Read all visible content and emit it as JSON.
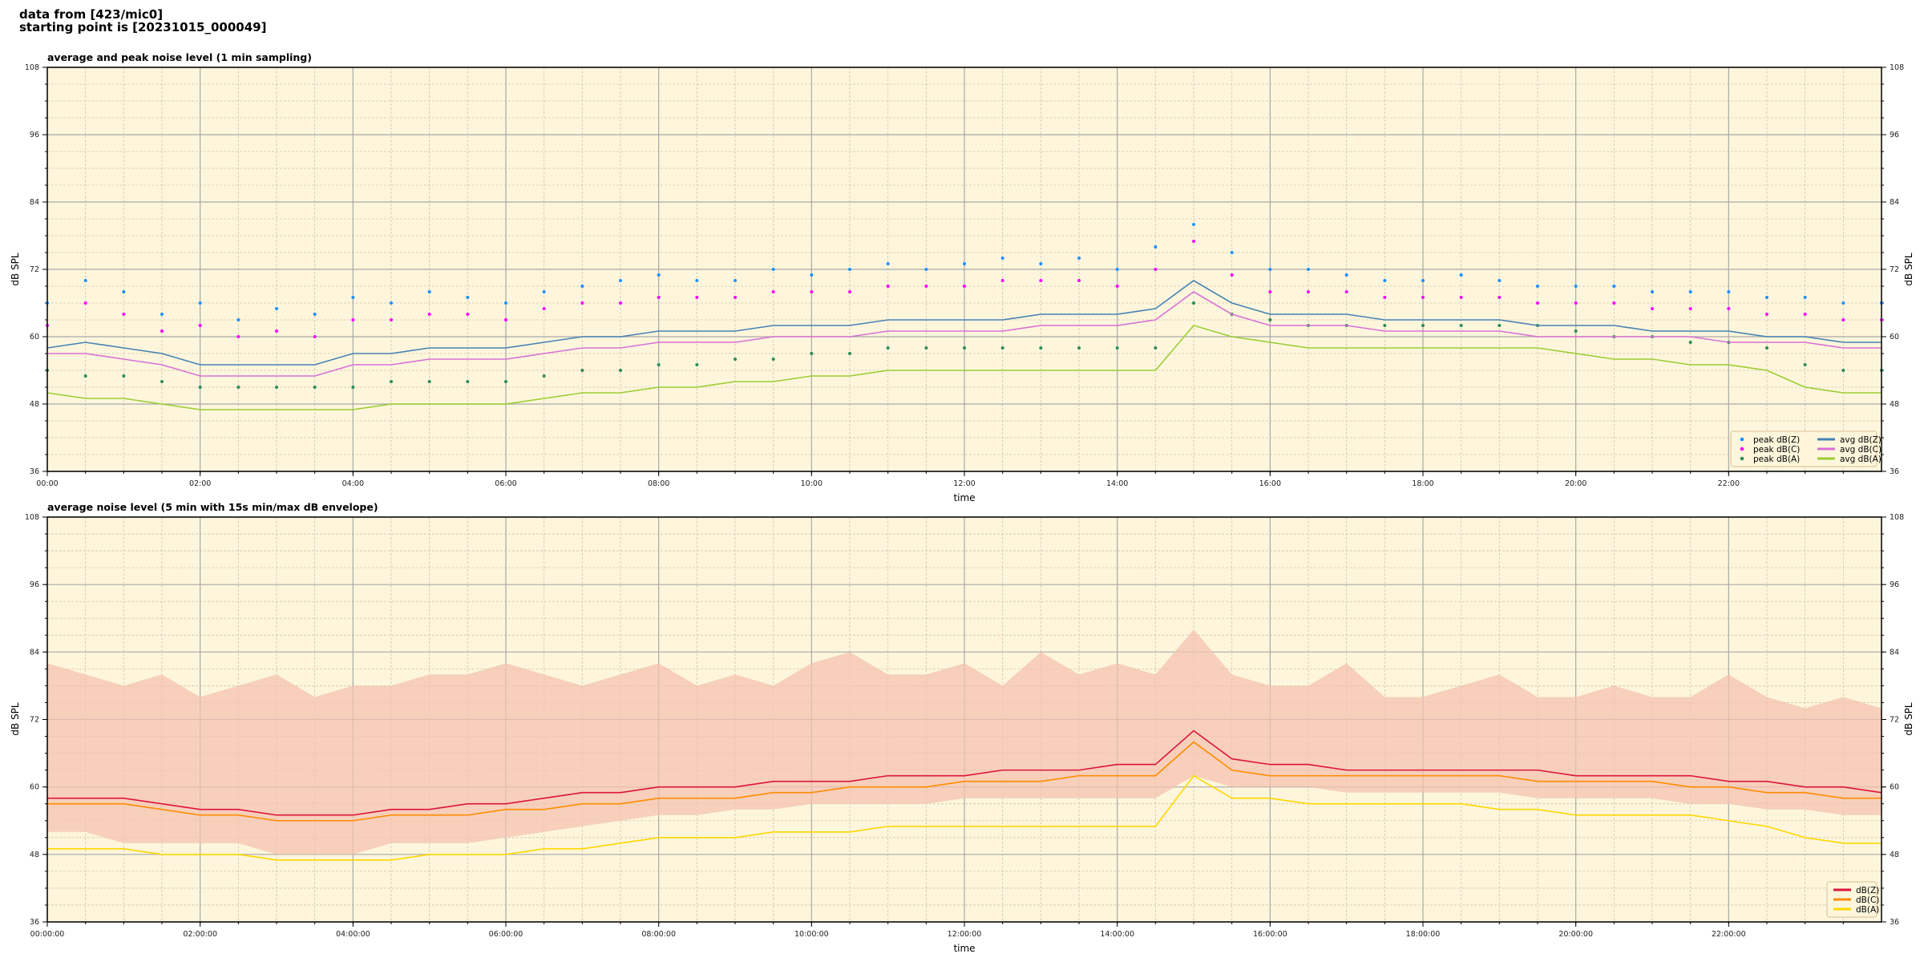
{
  "header": {
    "line1": "data from [423/mic0]",
    "line2": "starting point is [20231015_000049]"
  },
  "chart_data": [
    {
      "type": "line",
      "title": "average and peak noise level (1 min sampling)",
      "xlabel": "time",
      "ylabel": "dB SPL",
      "xlim_hours": [
        0,
        24
      ],
      "ylim": [
        36,
        108
      ],
      "yticks": [
        36,
        48,
        60,
        72,
        84,
        96,
        108
      ],
      "xtick_labels": [
        "00:00",
        "02:00",
        "04:00",
        "06:00",
        "08:00",
        "10:00",
        "12:00",
        "14:00",
        "16:00",
        "18:00",
        "20:00",
        "22:00"
      ],
      "grid": true,
      "background": "#fdf6dc",
      "legend_position": "lower-right",
      "x_hours_step": 0.5,
      "series": [
        {
          "name": "peak dB(Z)",
          "kind": "scatter",
          "color": "#1e90ff",
          "values": [
            66,
            70,
            68,
            64,
            66,
            63,
            65,
            64,
            67,
            66,
            68,
            67,
            66,
            68,
            69,
            70,
            71,
            70,
            70,
            72,
            71,
            72,
            73,
            72,
            73,
            74,
            73,
            74,
            72,
            76,
            80,
            75,
            72,
            72,
            71,
            70,
            70,
            71,
            70,
            69,
            69,
            69,
            68,
            68,
            68,
            67,
            67,
            66,
            66
          ]
        },
        {
          "name": "peak dB(C)",
          "kind": "scatter",
          "color": "#ff00ff",
          "values": [
            62,
            66,
            64,
            61,
            62,
            60,
            61,
            60,
            63,
            63,
            64,
            64,
            63,
            65,
            66,
            66,
            67,
            67,
            67,
            68,
            68,
            68,
            69,
            69,
            69,
            70,
            70,
            70,
            69,
            72,
            77,
            71,
            68,
            68,
            68,
            67,
            67,
            67,
            67,
            66,
            66,
            66,
            65,
            65,
            65,
            64,
            64,
            63,
            63
          ]
        },
        {
          "name": "peak dB(A)",
          "kind": "scatter",
          "color": "#2e8b57",
          "values": [
            54,
            53,
            53,
            52,
            51,
            51,
            51,
            51,
            51,
            52,
            52,
            52,
            52,
            53,
            54,
            54,
            55,
            55,
            56,
            56,
            57,
            57,
            58,
            58,
            58,
            58,
            58,
            58,
            58,
            58,
            66,
            64,
            63,
            62,
            62,
            62,
            62,
            62,
            62,
            62,
            61,
            60,
            60,
            59,
            59,
            58,
            55,
            54,
            54
          ]
        },
        {
          "name": "avg dB(Z)",
          "kind": "line",
          "color": "#4682b4",
          "values": [
            58,
            59,
            58,
            57,
            55,
            55,
            55,
            55,
            57,
            57,
            58,
            58,
            58,
            59,
            60,
            60,
            61,
            61,
            61,
            62,
            62,
            62,
            63,
            63,
            63,
            63,
            64,
            64,
            64,
            65,
            70,
            66,
            64,
            64,
            64,
            63,
            63,
            63,
            63,
            62,
            62,
            62,
            61,
            61,
            61,
            60,
            60,
            59,
            59
          ]
        },
        {
          "name": "avg dB(C)",
          "kind": "line",
          "color": "#da70d6",
          "values": [
            57,
            57,
            56,
            55,
            53,
            53,
            53,
            53,
            55,
            55,
            56,
            56,
            56,
            57,
            58,
            58,
            59,
            59,
            59,
            60,
            60,
            60,
            61,
            61,
            61,
            61,
            62,
            62,
            62,
            63,
            68,
            64,
            62,
            62,
            62,
            61,
            61,
            61,
            61,
            60,
            60,
            60,
            60,
            60,
            59,
            59,
            59,
            58,
            58
          ]
        },
        {
          "name": "avg dB(A)",
          "kind": "line",
          "color": "#9acd32",
          "values": [
            50,
            49,
            49,
            48,
            47,
            47,
            47,
            47,
            47,
            48,
            48,
            48,
            48,
            49,
            50,
            50,
            51,
            51,
            52,
            52,
            53,
            53,
            54,
            54,
            54,
            54,
            54,
            54,
            54,
            54,
            62,
            60,
            59,
            58,
            58,
            58,
            58,
            58,
            58,
            58,
            57,
            56,
            56,
            55,
            55,
            54,
            51,
            50,
            50
          ]
        }
      ]
    },
    {
      "type": "line",
      "title": "average noise level (5 min with 15s min/max dB envelope)",
      "xlabel": "time",
      "ylabel": "dB SPL",
      "xlim_hours": [
        0,
        24
      ],
      "ylim": [
        36,
        108
      ],
      "yticks": [
        36,
        48,
        60,
        72,
        84,
        96,
        108
      ],
      "xtick_labels": [
        "00:00:00",
        "02:00:00",
        "04:00:00",
        "06:00:00",
        "08:00:00",
        "10:00:00",
        "12:00:00",
        "14:00:00",
        "16:00:00",
        "18:00:00",
        "20:00:00",
        "22:00:00"
      ],
      "grid": true,
      "background": "#fdf6dc",
      "legend_position": "lower-right",
      "x_hours_step": 0.5,
      "envelope": {
        "color": "#f4c2b0",
        "max": [
          82,
          80,
          78,
          80,
          76,
          78,
          80,
          76,
          78,
          78,
          80,
          80,
          82,
          80,
          78,
          80,
          82,
          78,
          80,
          78,
          82,
          84,
          80,
          80,
          82,
          78,
          84,
          80,
          82,
          80,
          88,
          80,
          78,
          78,
          82,
          76,
          76,
          78,
          80,
          76,
          76,
          78,
          76,
          76,
          80,
          76,
          74,
          76,
          74
        ],
        "min": [
          52,
          52,
          50,
          50,
          50,
          50,
          48,
          48,
          48,
          50,
          50,
          50,
          51,
          52,
          53,
          54,
          55,
          55,
          56,
          56,
          57,
          57,
          57,
          57,
          58,
          58,
          58,
          58,
          58,
          58,
          62,
          60,
          60,
          60,
          59,
          59,
          59,
          59,
          59,
          58,
          58,
          58,
          58,
          57,
          57,
          56,
          56,
          55,
          55
        ]
      },
      "series": [
        {
          "name": "dB(Z)",
          "kind": "line",
          "color": "#dc143c",
          "values": [
            58,
            58,
            58,
            57,
            56,
            56,
            55,
            55,
            55,
            56,
            56,
            57,
            57,
            58,
            59,
            59,
            60,
            60,
            60,
            61,
            61,
            61,
            62,
            62,
            62,
            63,
            63,
            63,
            64,
            64,
            70,
            65,
            64,
            64,
            63,
            63,
            63,
            63,
            63,
            63,
            62,
            62,
            62,
            62,
            61,
            61,
            60,
            60,
            59
          ]
        },
        {
          "name": "dB(C)",
          "kind": "line",
          "color": "#ff8c00",
          "values": [
            57,
            57,
            57,
            56,
            55,
            55,
            54,
            54,
            54,
            55,
            55,
            55,
            56,
            56,
            57,
            57,
            58,
            58,
            58,
            59,
            59,
            60,
            60,
            60,
            61,
            61,
            61,
            62,
            62,
            62,
            68,
            63,
            62,
            62,
            62,
            62,
            62,
            62,
            62,
            61,
            61,
            61,
            61,
            60,
            60,
            59,
            59,
            58,
            58
          ]
        },
        {
          "name": "dB(A)",
          "kind": "line",
          "color": "#ffd700",
          "values": [
            49,
            49,
            49,
            48,
            48,
            48,
            47,
            47,
            47,
            47,
            48,
            48,
            48,
            49,
            49,
            50,
            51,
            51,
            51,
            52,
            52,
            52,
            53,
            53,
            53,
            53,
            53,
            53,
            53,
            53,
            62,
            58,
            58,
            57,
            57,
            57,
            57,
            57,
            56,
            56,
            55,
            55,
            55,
            55,
            54,
            53,
            51,
            50,
            50
          ]
        }
      ]
    }
  ]
}
